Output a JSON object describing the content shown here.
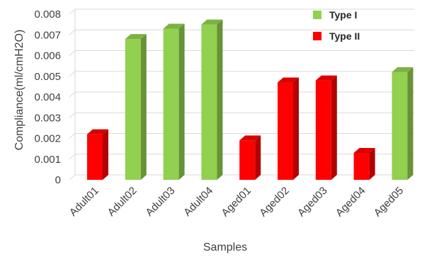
{
  "chart_data": {
    "type": "bar",
    "title": "",
    "xlabel": "Samples",
    "ylabel": "Compliance(ml/cmH2O)",
    "ylim": [
      0,
      0.008
    ],
    "yticks": [
      "0",
      "0.001",
      "0.002",
      "0.003",
      "0.004",
      "0.005",
      "0.006",
      "0.007",
      "0.008"
    ],
    "grid": true,
    "legend_position": "top-right",
    "legend": [
      {
        "name": "Type I",
        "color": "#92d050"
      },
      {
        "name": "Type II",
        "color": "#ff0000"
      }
    ],
    "categories": [
      "Adult01",
      "Adult02",
      "Adult03",
      "Adult04",
      "Aged01",
      "Aged02",
      "Aged03",
      "Aged04",
      "Aged05"
    ],
    "values": [
      0.0022,
      0.0068,
      0.0073,
      0.0075,
      0.0019,
      0.0047,
      0.0048,
      0.0013,
      0.0052
    ],
    "types": [
      "Type II",
      "Type I",
      "Type I",
      "Type I",
      "Type II",
      "Type II",
      "Type II",
      "Type II",
      "Type I"
    ],
    "style": "3d-column"
  }
}
